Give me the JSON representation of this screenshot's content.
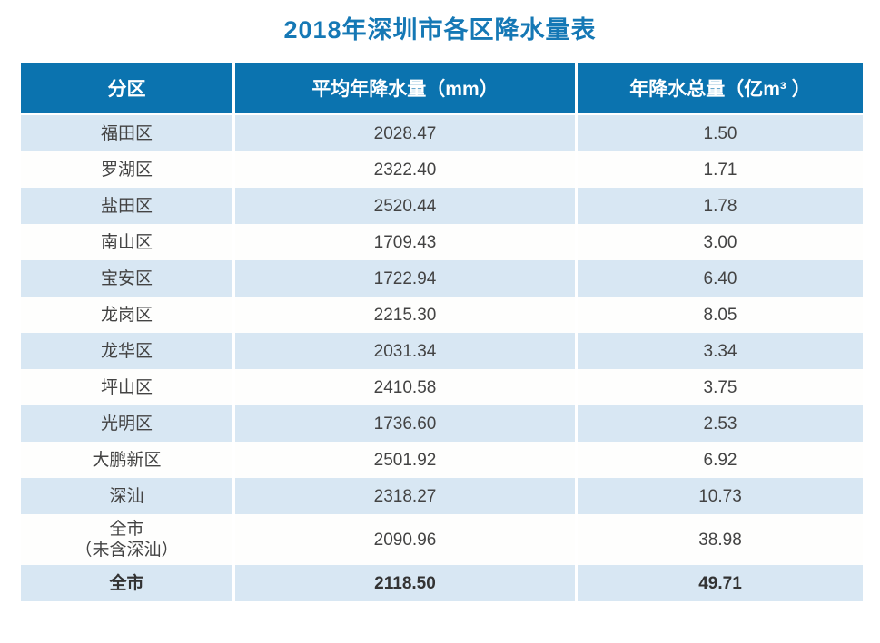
{
  "title": "2018年深圳市各区降水量表",
  "table": {
    "headers": [
      "分区",
      "平均年降水量（mm）",
      "年降水总量（亿m³ ）"
    ],
    "rows": [
      {
        "district_lines": [
          "福田区"
        ],
        "avg_mm": "2028.47",
        "total_billion_m3": "1.50"
      },
      {
        "district_lines": [
          "罗湖区"
        ],
        "avg_mm": "2322.40",
        "total_billion_m3": "1.71"
      },
      {
        "district_lines": [
          "盐田区"
        ],
        "avg_mm": "2520.44",
        "total_billion_m3": "1.78"
      },
      {
        "district_lines": [
          "南山区"
        ],
        "avg_mm": "1709.43",
        "total_billion_m3": "3.00"
      },
      {
        "district_lines": [
          "宝安区"
        ],
        "avg_mm": "1722.94",
        "total_billion_m3": "6.40"
      },
      {
        "district_lines": [
          "龙岗区"
        ],
        "avg_mm": "2215.30",
        "total_billion_m3": "8.05"
      },
      {
        "district_lines": [
          "龙华区"
        ],
        "avg_mm": "2031.34",
        "total_billion_m3": "3.34"
      },
      {
        "district_lines": [
          "坪山区"
        ],
        "avg_mm": "2410.58",
        "total_billion_m3": "3.75"
      },
      {
        "district_lines": [
          "光明区"
        ],
        "avg_mm": "1736.60",
        "total_billion_m3": "2.53"
      },
      {
        "district_lines": [
          "大鹏新区"
        ],
        "avg_mm": "2501.92",
        "total_billion_m3": "6.92"
      },
      {
        "district_lines": [
          "深汕"
        ],
        "avg_mm": "2318.27",
        "total_billion_m3": "10.73"
      },
      {
        "district_lines": [
          "全市",
          "（未含深汕）"
        ],
        "avg_mm": "2090.96",
        "total_billion_m3": "38.98"
      },
      {
        "district_lines": [
          "全市"
        ],
        "avg_mm": "2118.50",
        "total_billion_m3": "49.71"
      }
    ]
  },
  "colors": {
    "title_text": "#1578b5",
    "header_bg": "#0b73af",
    "header_text": "#ffffff",
    "row_shaded_bg": "#d8e7f3",
    "row_plain_bg": "#fefefd",
    "cell_text": "#434343"
  },
  "chart_data": {
    "type": "table",
    "title": "2018年深圳市各区降水量表",
    "columns": [
      "分区",
      "平均年降水量（mm）",
      "年降水总量（亿m³）"
    ],
    "rows": [
      [
        "福田区",
        2028.47,
        1.5
      ],
      [
        "罗湖区",
        2322.4,
        1.71
      ],
      [
        "盐田区",
        2520.44,
        1.78
      ],
      [
        "南山区",
        1709.43,
        3.0
      ],
      [
        "宝安区",
        1722.94,
        6.4
      ],
      [
        "龙岗区",
        2215.3,
        8.05
      ],
      [
        "龙华区",
        2031.34,
        3.34
      ],
      [
        "坪山区",
        2410.58,
        3.75
      ],
      [
        "光明区",
        1736.6,
        2.53
      ],
      [
        "大鹏新区",
        2501.92,
        6.92
      ],
      [
        "深汕",
        2318.27,
        10.73
      ],
      [
        "全市（未含深汕）",
        2090.96,
        38.98
      ],
      [
        "全市",
        2118.5,
        49.71
      ]
    ]
  }
}
